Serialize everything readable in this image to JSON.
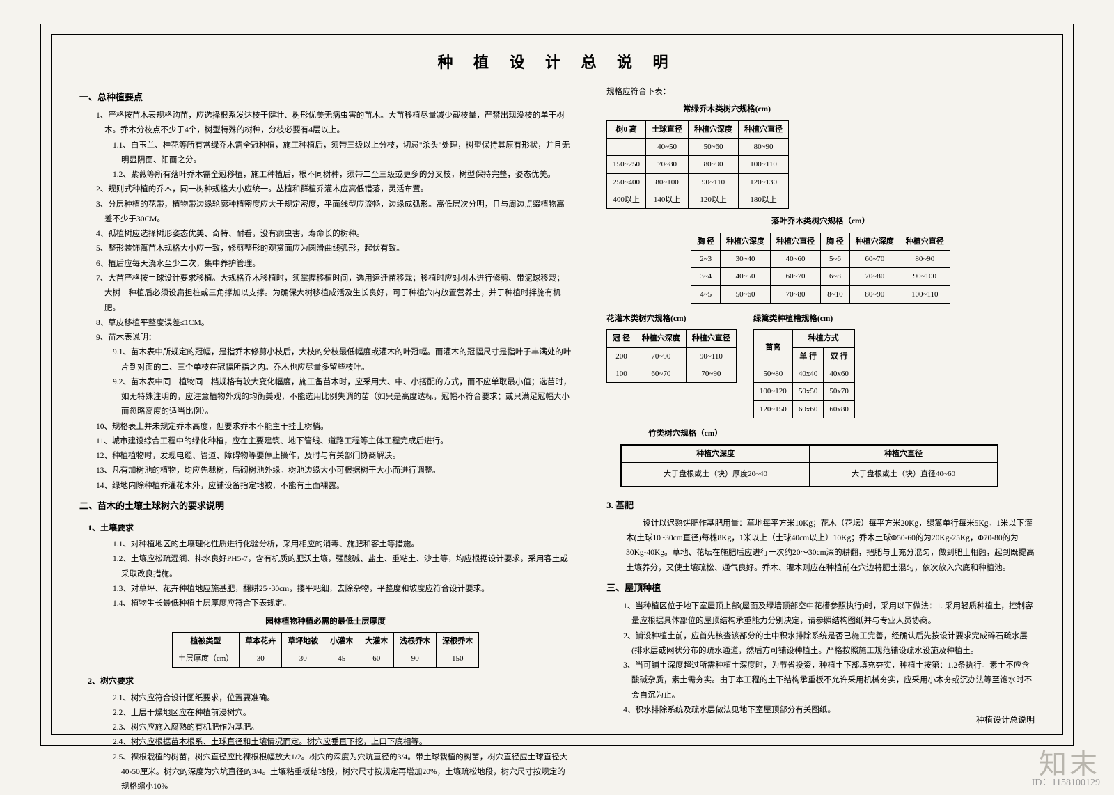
{
  "title": "种 植 设 计 总 说 明",
  "footer_label": "种植设计总说明",
  "watermark": "知末",
  "watermark_id": "ID：1158100129",
  "left": {
    "sec1_title": "一、总种植要点",
    "p1": "1、严格按苗木表规格购苗，应选择根系发达枝干健壮、树形优美无病虫害的苗木。大苗移植尽量减少截枝量，严禁出现没枝的单干树木。乔木分枝点不少于4个，树型特殊的树种，分枝必要有4层以上。",
    "p1_1": "1.1、白玉兰、桂花等所有常绿乔木需全冠种植，施工种植后，须带三级以上分枝，切忌\"杀头\"处理，树型保持其原有形状，并且无明显阴面、阳面之分。",
    "p1_2": "1.2、紫薇等所有落叶乔木需全冠移植，施工种植后，根不同树种，须带二至三级或更多的分叉枝，树型保持完整，姿态优美。",
    "p2": "2、规则式种植的乔木，同一树种规格大小应统一。丛植和群植乔灌木应高低错落，灵活布置。",
    "p3": "3、分层种植的花带，植物带边缘轮廓种植密度应大于规定密度，平面线型应流畅，边缘成弧形。高低层次分明，且与周边点缀植物高差不少于30CM。",
    "p4": "4、孤植树应选择树形姿态优美、奇特、耐看，没有病虫害，寿命长的树种。",
    "p5": "5、整形装饰篱苗木规格大小应一致，修剪整形的观赏面应为圆滑曲线弧形，起伏有致。",
    "p6": "6、植后应每天浇水至少二次，集中养护管理。",
    "p7": "7、大苗严格按土球设计要求移植。大规格乔木移植时，须掌握移植时间，选用运迁苗移栽；移植时应对树木进行修剪、带泥球移栽；大树　种植后必须设扁担桩或三角撑加以支撑。为确保大树移植成活及生长良好，可于种植穴内放置营养土，并于种植时拌施有机肥。",
    "p8": "8、草皮移植平整度误差≤1CM。",
    "p9": "9、苗木表说明：",
    "p9_1": "9.1、苗木表中所规定的冠幅，是指乔木修剪小枝后，大枝的分枝最低幅度或灌木的叶冠幅。而灌木的冠幅尺寸是指叶子丰满处的叶片到对面的二、三个单枝在冠幅所指之内。乔木也应尽量多留些枝叶。",
    "p9_2": "9.2、苗木表中同一植物同一档规格有较大变化幅度，施工备苗木时，应采用大、中、小搭配的方式，而不应单取最小值；选苗时，如无特殊注明的，应注意植物外观的均衡美观，不能选用比例失调的苗（如只是高度达标，冠幅不符合要求；或只满足冠幅大小而忽略高度的适当比例）。",
    "p10": "10、规格表上并未规定乔木高度，但要求乔木不能主干挂土树梢。",
    "p11": "11、城市建设综合工程中的绿化种植，应在主要建筑、地下管线、道路工程等主体工程完成后进行。",
    "p12": "12、种植植物时，发现电缆、管道、障碍物等要停止操作，及时与有关部门协商解决。",
    "p13": "13、凡有加树池的植物，均应先裁树，后砌树池外缘。树池边缘大小可根据树干大小而进行调整。",
    "p14": "14、绿地内除种植乔灌花木外，应铺设备指定地被，不能有土面裸露。",
    "sec2_title": "二、苗木的土壤土球树穴的要求说明",
    "sec2_1": "1、土壤要求",
    "p2_1_1": "1.1、对种植地区的土壤理化性质进行化验分析，采用相应的消毒、施肥和客土等措施。",
    "p2_1_2": "1.2、土壤应松疏湿润、排水良好PH5-7，含有机质的肥沃土壤，强酸碱、盐土、重粘土、沙土等，均应根据设计要求，采用客土或采取改良措施。",
    "p2_1_3": "1.3、对草坪、花卉种植地应施基肥，翻耕25~30cm，搂平耙细，去除杂物，平整度和坡度应符合设计要求。",
    "p2_1_4": "1.4、植物生长最低种植土层厚度应符合下表规定。",
    "tbl1_caption": "园林植物种植必需的最低土层厚度",
    "tbl1_headers": [
      "植被类型",
      "草本花卉",
      "草坪地被",
      "小灌木",
      "大灌木",
      "浅根乔木",
      "深根乔木"
    ],
    "tbl1_label": "土层厚度（cm）",
    "tbl1_values": [
      "30",
      "30",
      "45",
      "60",
      "90",
      "150"
    ],
    "sec2_2": "2、树穴要求",
    "p2_2_1": "2.1、树穴应符合设计图纸要求，位置要准确。",
    "p2_2_2": "2.2、土层干燥地区应在种植前浸树穴。",
    "p2_2_3": "2.3、树穴应施入腐熟的有机肥作为基肥。",
    "p2_2_4": "2.4、树穴应根据苗木根系、土球直径和土壤情况而定。树穴应垂直下挖，上口下底相等。",
    "p2_2_5": "2.5、裸根栽植的树苗，树穴直径应比裸根根幅放大1/2。树穴的深度为穴坑直径的3/4。带土球栽植的树苗，树穴直径应土球直径大40-50厘米。树穴的深度为穴坑直径的3/4。土壤粘重板结地段，树穴尺寸按规定再增加20%，土壤疏松地段，树穴尺寸按规定的规格缩小10%"
  },
  "right": {
    "intro": "规格应符合下表：",
    "t1_caption": "常绿乔木类树穴规格(cm)",
    "t1_headers": [
      "树0 高",
      "土球直径",
      "种植穴深度",
      "种植穴直径"
    ],
    "t1_rows": [
      [
        "",
        "40~50",
        "50~60",
        "80~90"
      ],
      [
        "150~250",
        "70~80",
        "80~90",
        "100~110"
      ],
      [
        "250~400",
        "80~100",
        "90~110",
        "120~130"
      ],
      [
        "400以上",
        "140以上",
        "120以上",
        "180以上"
      ]
    ],
    "t2_caption": "落叶乔木类树穴规格（cm）",
    "t2_headers": [
      "胸 径",
      "种植穴深度",
      "种植穴直径",
      "胸 径",
      "种植穴深度",
      "种植穴直径"
    ],
    "t2_rows": [
      [
        "2~3",
        "30~40",
        "40~60",
        "5~6",
        "60~70",
        "80~90"
      ],
      [
        "3~4",
        "40~50",
        "60~70",
        "6~8",
        "70~80",
        "90~100"
      ],
      [
        "4~5",
        "50~60",
        "70~80",
        "8~10",
        "80~90",
        "100~110"
      ]
    ],
    "t3_caption": "花灌木类树穴规格(cm)",
    "t3_headers": [
      "冠 径",
      "种植穴深度",
      "种植穴直径"
    ],
    "t3_rows": [
      [
        "200",
        "70~90",
        "90~110"
      ],
      [
        "100",
        "60~70",
        "70~90"
      ]
    ],
    "t4_caption": "绿篱类种植槽规格(cm)",
    "t4_sub": "种植方式",
    "t4_headers": [
      "苗高",
      "单 行",
      "双 行"
    ],
    "t4_rows": [
      [
        "50~80",
        "40x40",
        "40x60"
      ],
      [
        "100~120",
        "50x50",
        "50x70"
      ],
      [
        "120~150",
        "60x60",
        "60x80"
      ]
    ],
    "t5_caption": "竹类树穴规格（cm）",
    "t5_headers": [
      "种植穴深度",
      "种植穴直径"
    ],
    "t5_rows": [
      [
        "大于盘根或土（块）厚度20~40",
        "大于盘根或土（块）直径40~60"
      ]
    ],
    "sec3_title": "3. 基肥",
    "sec3_body": "设计以迟熟饼肥作基肥用量：草地每平方米10Kg；花木（花坛）每平方米20Kg，绿篱单行每米5Kg。1米以下灌木(土球10~30cm直径)每株8Kg，1米以上（土球40cm以上）10Kg；乔木土球Φ50-60的为20Kg-25Kg，Φ70-80的为30Kg-40Kg。草地、花坛在施肥后应进行一次约20～30cm深的耕翻，把肥与土充分混匀，做到肥土相融，起到既提高土壤养分，又使土壤疏松、通气良好。乔木、灌木则应在种植前在穴边将肥土混匀，依次放入穴底和种植池。",
    "sec4_title": "三、屋顶种植",
    "p4_1": "1、当种植区位于地下室屋顶上部(屋面及绿墙顶部空中花槽参照执行)时，采用以下做法：1. 采用轻质种植土，控制容量应根据具体部位的屋顶结构承重能力分别决定，请参照结构图纸并与专业人员协商。",
    "p4_2": "2、铺设种植土前，应首先核查该部分的土中积水排除系统是否已施工完善，经确认后先按设计要求完成碎石疏水层(排水层或网状分布的疏水通道，然后方可铺设种植土。严格按照施工规范铺设疏水设施及种植土。",
    "p4_3": "3、当可铺土深度超过所需种植土深度时，为节省投资，种植土下部填充夯实，种植土按第：1.2条执行。素土不应含酸碱杂质，素土需夯实。由于本工程的土下结构承重板不允许采用机械夯实，应采用小木夯或沉办法等至饱水时不会自沉为止。",
    "p4_4": "4、积水排除系统及疏水层做法见地下室屋顶部分有关图纸。"
  }
}
